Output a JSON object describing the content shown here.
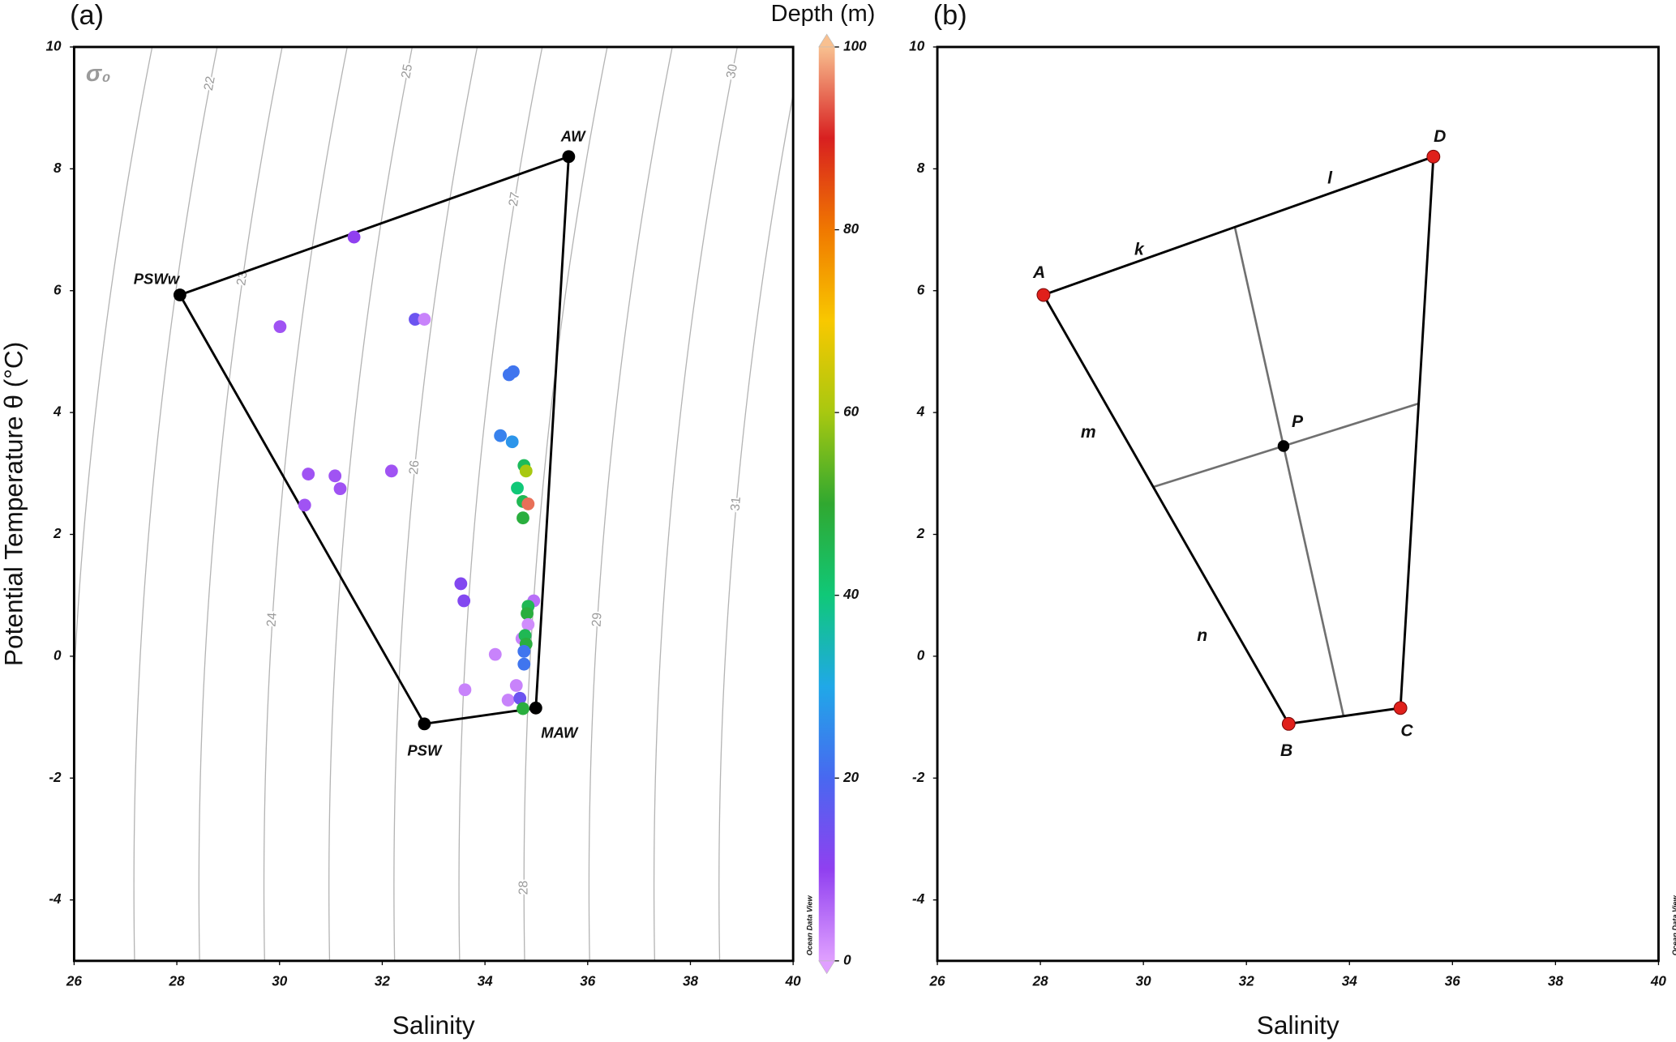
{
  "chart_data": [
    {
      "type": "scatter",
      "panel_label": "(a)",
      "xlabel": "Salinity",
      "ylabel": "Potential Temperature θ (°C)",
      "xlim": [
        26,
        40
      ],
      "ylim": [
        -5,
        10
      ],
      "xticks": [
        26,
        28,
        30,
        32,
        34,
        36,
        38,
        40
      ],
      "yticks": [
        -4,
        -2,
        0,
        2,
        4,
        6,
        8,
        10
      ],
      "isopycnal_label": "σ₀",
      "isopycnals": [
        21,
        22,
        23,
        24,
        25,
        26,
        27,
        28,
        29,
        30,
        31
      ],
      "endmembers": {
        "names": [
          "PSWw",
          "AW",
          "MAW",
          "PSW"
        ],
        "x": [
          28.06,
          35.63,
          34.99,
          32.82
        ],
        "y": [
          5.93,
          8.2,
          -0.85,
          -1.11
        ],
        "color": "#000000"
      },
      "x": [
        31.45,
        30.01,
        32.64,
        32.82,
        34.47,
        34.55,
        34.3,
        34.53,
        34.76,
        34.8,
        34.63,
        34.74,
        34.84,
        34.74,
        30.56,
        31.08,
        31.18,
        32.18,
        30.49,
        33.53,
        33.59,
        34.95,
        34.84,
        34.82,
        34.84,
        34.72,
        34.78,
        34.8,
        34.76,
        34.76,
        34.2,
        34.61,
        33.61,
        34.45,
        34.68,
        34.74
      ],
      "y": [
        6.88,
        5.41,
        5.53,
        5.53,
        4.62,
        4.67,
        3.62,
        3.52,
        3.13,
        3.04,
        2.76,
        2.54,
        2.5,
        2.27,
        2.99,
        2.96,
        2.75,
        3.04,
        2.48,
        1.19,
        0.91,
        0.91,
        0.82,
        0.7,
        0.52,
        0.29,
        0.34,
        0.2,
        0.08,
        -0.13,
        0.03,
        -0.48,
        -0.55,
        -0.72,
        -0.69,
        -0.86
      ],
      "depth": [
        10,
        8,
        15,
        3,
        22,
        22,
        24,
        27,
        44,
        60,
        40,
        45,
        95,
        48,
        8,
        8,
        8,
        8,
        8,
        12,
        12,
        5,
        45,
        48,
        2,
        3,
        45,
        48,
        22,
        22,
        3,
        3,
        3,
        3,
        15,
        48
      ],
      "colorbar": {
        "label": "Depth (m)",
        "lim": [
          0,
          100
        ],
        "ticks": [
          0,
          20,
          40,
          60,
          80,
          100
        ],
        "colors": [
          "#e0a0ff",
          "#9040f0",
          "#4868f0",
          "#20a8e8",
          "#10c878",
          "#30a830",
          "#a8c810",
          "#f8c800",
          "#f07800",
          "#d82020",
          "#f8c090"
        ]
      },
      "watermark": "Ocean Data View"
    },
    {
      "type": "mixing",
      "panel_label": "(b)",
      "xlabel": "Salinity",
      "xlim": [
        26,
        40
      ],
      "ylim": [
        -5,
        10
      ],
      "xticks": [
        26,
        28,
        30,
        32,
        34,
        36,
        38,
        40
      ],
      "yticks": [
        -4,
        -2,
        0,
        2,
        4,
        6,
        8,
        10
      ],
      "endmembers": {
        "names": [
          "A",
          "B",
          "C",
          "D"
        ],
        "x": [
          28.06,
          32.82,
          34.99,
          35.63
        ],
        "y": [
          5.93,
          -1.11,
          -0.85,
          8.2
        ],
        "color": "#e0201b"
      },
      "point": {
        "name": "P",
        "x": 32.72,
        "y": 3.45,
        "color": "#000000"
      },
      "segment_labels": [
        "k",
        "l",
        "m",
        "n"
      ],
      "watermark": "Ocean Data View"
    }
  ]
}
